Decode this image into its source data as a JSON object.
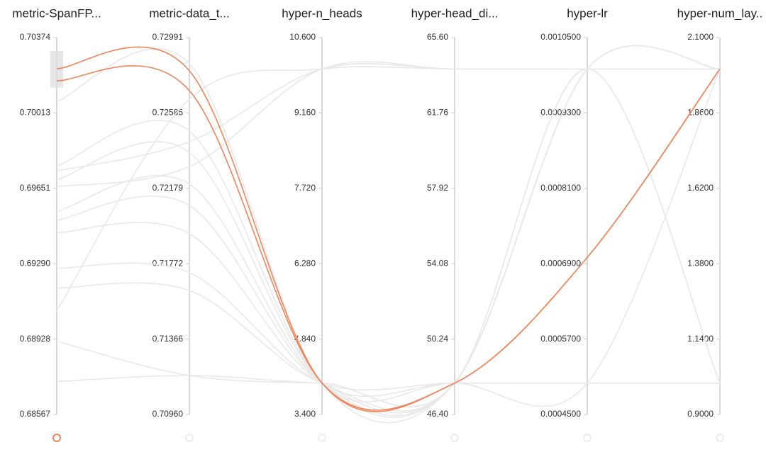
{
  "chart_data": {
    "type": "parallel",
    "axes": [
      {
        "label": "metric-SpanFP...",
        "ylim": [
          0.68567,
          0.70374
        ],
        "yticks": [
          0.68567,
          0.68928,
          {
            "value": 0.6929,
            "label": "0.69290"
          },
          0.69651,
          0.70013,
          0.70374
        ],
        "brush": [
          0.70133,
          0.70309
        ]
      },
      {
        "label": "metric-data_t...",
        "ylim": [
          0.7096,
          0.72991
        ],
        "yticks": [
          {
            "value": 0.7096,
            "label": "0.70960"
          },
          0.71366,
          0.71772,
          0.72179,
          0.72585,
          0.72991
        ]
      },
      {
        "label": "hyper-n_heads",
        "ylim": [
          3.4,
          10.6
        ],
        "yticks": [
          {
            "value": 3.4,
            "label": "3.400"
          },
          {
            "value": 4.84,
            "label": "4.840"
          },
          {
            "value": 6.28,
            "label": "6.280"
          },
          {
            "value": 7.72,
            "label": "7.720"
          },
          {
            "value": 9.16,
            "label": "9.160"
          },
          {
            "value": 10.6,
            "label": "10.600"
          }
        ]
      },
      {
        "label": "hyper-head_di...",
        "ylim": [
          46.4,
          65.6
        ],
        "yticks": [
          {
            "value": 46.4,
            "label": "46.40"
          },
          50.24,
          54.08,
          57.92,
          61.76,
          {
            "value": 65.6,
            "label": "65.60"
          }
        ]
      },
      {
        "label": "hyper-lr",
        "ylim": [
          0.00045,
          0.00105
        ],
        "yticks": [
          {
            "value": 0.00045,
            "label": "0.0004500"
          },
          {
            "value": 0.00057,
            "label": "0.0005700"
          },
          {
            "value": 0.00069,
            "label": "0.0006900"
          },
          {
            "value": 0.00081,
            "label": "0.0008100"
          },
          {
            "value": 0.00093,
            "label": "0.0009300"
          },
          {
            "value": 0.00105,
            "label": "0.0010500"
          }
        ]
      },
      {
        "label": "hyper-num_lay..",
        "ylim": [
          0.9,
          2.1
        ],
        "yticks": [
          {
            "value": 0.9,
            "label": "0.9000"
          },
          {
            "value": 1.14,
            "label": "1.1400"
          },
          {
            "value": 1.38,
            "label": "1.3800"
          },
          {
            "value": 1.62,
            "label": "1.6200"
          },
          {
            "value": 1.86,
            "label": "1.8600"
          },
          {
            "value": 2.1,
            "label": "2.1000"
          }
        ]
      }
    ],
    "series": [
      {
        "color": "#e8e8e8",
        "values": [
          0.70068,
          0.7285,
          4,
          48,
          0.001,
          2
        ]
      },
      {
        "color": "#e8e8e8",
        "values": [
          0.69758,
          0.72487,
          4,
          48,
          0.0005,
          1
        ]
      },
      {
        "color": "#e8e8e8",
        "values": [
          0.69734,
          0.7243,
          10,
          64,
          0.001,
          2
        ]
      },
      {
        "color": "#e8e8e8",
        "values": [
          0.69693,
          0.72372,
          4,
          48,
          0.001,
          1
        ]
      },
      {
        "color": "#e8e8e8",
        "values": [
          0.69659,
          0.72296,
          10,
          64,
          0.001,
          2
        ]
      },
      {
        "color": "#e8e8e8",
        "values": [
          0.6954,
          0.72201,
          4,
          48,
          0.001,
          2
        ]
      },
      {
        "color": "#e8e8e8",
        "values": [
          0.69499,
          0.72086,
          4,
          48,
          0.0005,
          2
        ]
      },
      {
        "color": "#e8e8e8",
        "values": [
          0.69438,
          0.71934,
          4,
          48,
          0.001,
          2
        ]
      },
      {
        "color": "#e8e8e8",
        "values": [
          0.69268,
          0.71724,
          4,
          48,
          0.001,
          1
        ]
      },
      {
        "color": "#e8e8e8",
        "values": [
          0.69173,
          0.71628,
          4,
          48,
          0.0005,
          1
        ]
      },
      {
        "color": "#e8e8e8",
        "values": [
          0.69064,
          0.72659,
          10,
          64,
          0.001,
          2
        ]
      },
      {
        "color": "#e8e8e8",
        "values": [
          0.68918,
          0.7117,
          4,
          48,
          0.001,
          2
        ]
      },
      {
        "color": "#e8e8e8",
        "values": [
          0.68725,
          0.7117,
          4,
          48,
          0.001,
          2
        ]
      },
      {
        "color": "#f0845a",
        "values": [
          0.70225,
          0.72812,
          4,
          48,
          0.0007,
          2
        ]
      },
      {
        "color": "#f0845a",
        "values": [
          0.70167,
          0.72705,
          4,
          48,
          0.0007,
          2
        ]
      }
    ]
  }
}
